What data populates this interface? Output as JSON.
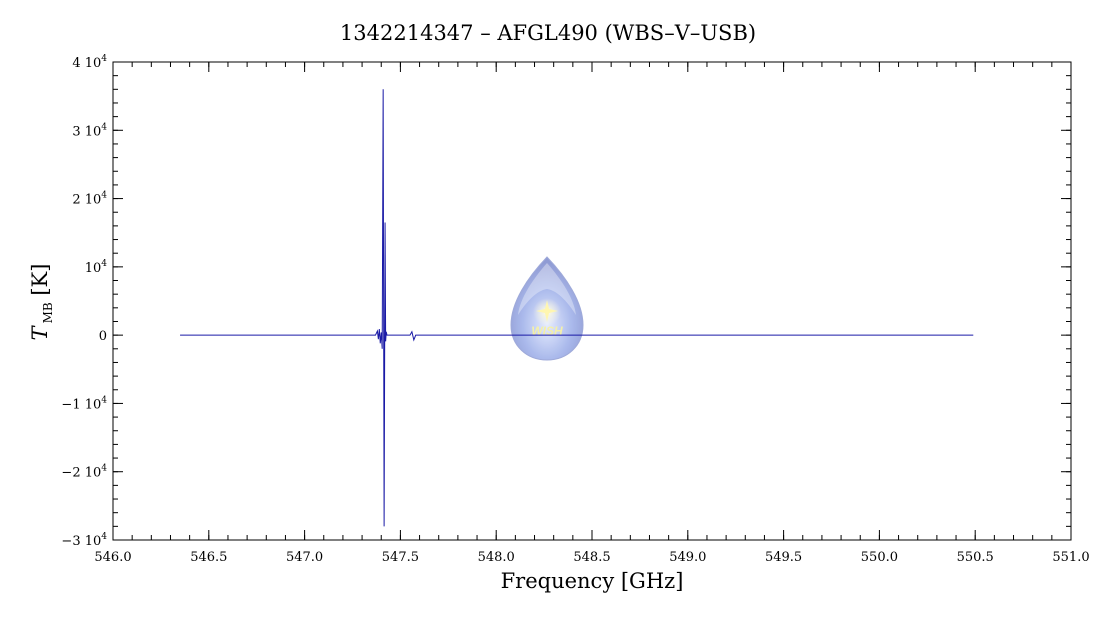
{
  "chart_data": {
    "type": "line",
    "title": "1342214347 – AFGL490 (WBS–V–USB)",
    "xlabel": "Frequency [GHz]",
    "ylabel_main": "T",
    "ylabel_sub": "MB",
    "ylabel_unit": "[K]",
    "xlim": [
      546.0,
      551.0
    ],
    "ylim": [
      -30000,
      40000
    ],
    "xticks": [
      546.0,
      546.5,
      547.0,
      547.5,
      548.0,
      548.5,
      549.0,
      549.5,
      550.0,
      550.5,
      551.0
    ],
    "xtick_labels": [
      "546.0",
      "546.5",
      "547.0",
      "547.5",
      "548.0",
      "548.5",
      "549.0",
      "549.5",
      "550.0",
      "550.5",
      "551.0"
    ],
    "yticks": [
      {
        "value": -30000,
        "mant": "−3 10",
        "exp": "4"
      },
      {
        "value": -20000,
        "mant": "−2 10",
        "exp": "4"
      },
      {
        "value": -10000,
        "mant": "−1 10",
        "exp": "4"
      },
      {
        "value": 0,
        "mant": "0",
        "exp": ""
      },
      {
        "value": 10000,
        "mant": "10",
        "exp": "4"
      },
      {
        "value": 20000,
        "mant": "2 10",
        "exp": "4"
      },
      {
        "value": 30000,
        "mant": "3 10",
        "exp": "4"
      },
      {
        "value": 40000,
        "mant": "4 10",
        "exp": "4"
      }
    ],
    "series": [
      {
        "color": "#1a1aa6",
        "x": [
          546.35,
          547.3,
          547.37,
          547.38,
          547.385,
          547.39,
          547.395,
          547.4,
          547.405,
          547.41,
          547.415,
          547.42,
          547.423,
          547.426,
          547.43,
          547.44,
          547.5,
          547.55,
          547.56,
          547.57,
          547.58,
          548.0,
          549.0,
          550.0,
          550.49
        ],
        "y": [
          0,
          0,
          0,
          600,
          -600,
          900,
          -1200,
          400,
          -2000,
          36000,
          -28000,
          16500,
          -900,
          500,
          0,
          0,
          0,
          0,
          500,
          -700,
          0,
          0,
          0,
          0,
          0
        ]
      }
    ]
  },
  "watermark": {
    "text": "WISH"
  }
}
